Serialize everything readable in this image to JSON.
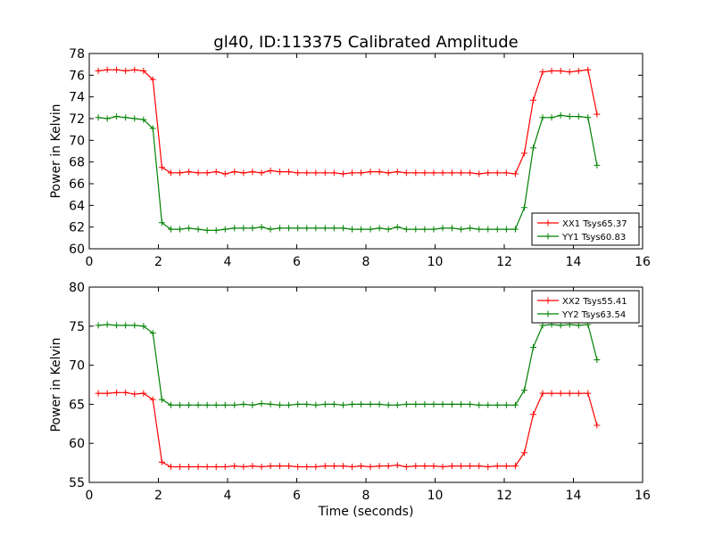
{
  "chart_data": [
    {
      "type": "line",
      "title": "gl40, ID:113375 Calibrated Amplitude",
      "xlabel": "",
      "ylabel": "Power in Kelvin",
      "xlim": [
        0,
        16
      ],
      "ylim": [
        60,
        78
      ],
      "xticks": [
        0,
        2,
        4,
        6,
        8,
        10,
        12,
        14,
        16
      ],
      "yticks": [
        60,
        62,
        64,
        66,
        68,
        70,
        72,
        74,
        76,
        78
      ],
      "legend_position": "lower-right",
      "grid": false,
      "x": [
        0.26,
        0.52,
        0.79,
        1.05,
        1.31,
        1.57,
        1.84,
        2.1,
        2.36,
        2.62,
        2.88,
        3.15,
        3.41,
        3.67,
        3.93,
        4.2,
        4.46,
        4.72,
        4.98,
        5.24,
        5.51,
        5.77,
        6.03,
        6.29,
        6.55,
        6.82,
        7.08,
        7.34,
        7.6,
        7.86,
        8.13,
        8.39,
        8.65,
        8.91,
        9.17,
        9.44,
        9.7,
        9.96,
        10.22,
        10.49,
        10.75,
        11.01,
        11.27,
        11.53,
        11.8,
        12.06,
        12.32,
        12.58,
        12.84,
        13.11,
        13.37,
        13.63,
        13.89,
        14.15,
        14.42,
        14.68
      ],
      "series": [
        {
          "name": "XX1 Tsys65.37",
          "color": "#ff0000",
          "values": [
            76.4,
            76.5,
            76.5,
            76.4,
            76.5,
            76.4,
            75.6,
            67.5,
            67.0,
            67.0,
            67.1,
            67.0,
            67.0,
            67.1,
            66.9,
            67.1,
            67.0,
            67.1,
            67.0,
            67.2,
            67.1,
            67.1,
            67.0,
            67.0,
            67.0,
            67.0,
            67.0,
            66.9,
            67.0,
            67.0,
            67.1,
            67.1,
            67.0,
            67.1,
            67.0,
            67.0,
            67.0,
            67.0,
            67.0,
            67.0,
            67.0,
            67.0,
            66.9,
            67.0,
            67.0,
            67.0,
            66.9,
            68.8,
            73.7,
            76.3,
            76.4,
            76.4,
            76.3,
            76.4,
            76.5,
            72.4
          ]
        },
        {
          "name": "YY1 Tsys60.83",
          "color": "#008000",
          "values": [
            72.1,
            72.0,
            72.2,
            72.1,
            72.0,
            71.9,
            71.1,
            62.4,
            61.8,
            61.8,
            61.9,
            61.8,
            61.7,
            61.7,
            61.8,
            61.9,
            61.9,
            61.9,
            62.0,
            61.8,
            61.9,
            61.9,
            61.9,
            61.9,
            61.9,
            61.9,
            61.9,
            61.9,
            61.8,
            61.8,
            61.8,
            61.9,
            61.8,
            62.0,
            61.8,
            61.8,
            61.8,
            61.8,
            61.9,
            61.9,
            61.8,
            61.9,
            61.8,
            61.8,
            61.8,
            61.8,
            61.8,
            63.8,
            69.3,
            72.1,
            72.1,
            72.3,
            72.2,
            72.2,
            72.1,
            67.7
          ]
        }
      ]
    },
    {
      "type": "line",
      "title": "",
      "xlabel": "Time (seconds)",
      "ylabel": "Power in Kelvin",
      "xlim": [
        0,
        16
      ],
      "ylim": [
        55,
        80
      ],
      "xticks": [
        0,
        2,
        4,
        6,
        8,
        10,
        12,
        14,
        16
      ],
      "yticks": [
        55,
        60,
        65,
        70,
        75,
        80
      ],
      "legend_position": "upper-right",
      "grid": false,
      "x": [
        0.26,
        0.52,
        0.79,
        1.05,
        1.31,
        1.57,
        1.84,
        2.1,
        2.36,
        2.62,
        2.88,
        3.15,
        3.41,
        3.67,
        3.93,
        4.2,
        4.46,
        4.72,
        4.98,
        5.24,
        5.51,
        5.77,
        6.03,
        6.29,
        6.55,
        6.82,
        7.08,
        7.34,
        7.6,
        7.86,
        8.13,
        8.39,
        8.65,
        8.91,
        9.17,
        9.44,
        9.7,
        9.96,
        10.22,
        10.49,
        10.75,
        11.01,
        11.27,
        11.53,
        11.8,
        12.06,
        12.32,
        12.58,
        12.84,
        13.11,
        13.37,
        13.63,
        13.89,
        14.15,
        14.42,
        14.68
      ],
      "series": [
        {
          "name": "XX2 Tsys55.41",
          "color": "#ff0000",
          "values": [
            66.4,
            66.4,
            66.5,
            66.5,
            66.3,
            66.4,
            65.6,
            57.6,
            57.0,
            57.0,
            57.0,
            57.0,
            57.0,
            57.0,
            57.0,
            57.1,
            57.0,
            57.1,
            57.0,
            57.1,
            57.1,
            57.1,
            57.0,
            57.0,
            57.0,
            57.1,
            57.1,
            57.1,
            57.0,
            57.1,
            57.0,
            57.1,
            57.1,
            57.2,
            57.0,
            57.1,
            57.1,
            57.1,
            57.0,
            57.1,
            57.1,
            57.1,
            57.1,
            57.0,
            57.1,
            57.1,
            57.1,
            58.8,
            63.7,
            66.4,
            66.4,
            66.4,
            66.4,
            66.4,
            66.4,
            62.3
          ]
        },
        {
          "name": "YY2 Tsys63.54",
          "color": "#008000",
          "values": [
            75.1,
            75.2,
            75.1,
            75.1,
            75.1,
            75.0,
            74.1,
            65.6,
            64.9,
            64.9,
            64.9,
            64.9,
            64.9,
            64.9,
            64.9,
            64.9,
            65.0,
            64.9,
            65.1,
            65.0,
            64.9,
            64.9,
            65.0,
            65.0,
            64.9,
            65.0,
            65.0,
            64.9,
            65.0,
            65.0,
            65.0,
            65.0,
            64.9,
            64.9,
            65.0,
            65.0,
            65.0,
            65.0,
            65.0,
            65.0,
            65.0,
            65.0,
            64.9,
            64.9,
            64.9,
            64.9,
            64.9,
            66.8,
            72.3,
            75.1,
            75.2,
            75.1,
            75.2,
            75.1,
            75.2,
            70.7
          ]
        }
      ]
    }
  ]
}
